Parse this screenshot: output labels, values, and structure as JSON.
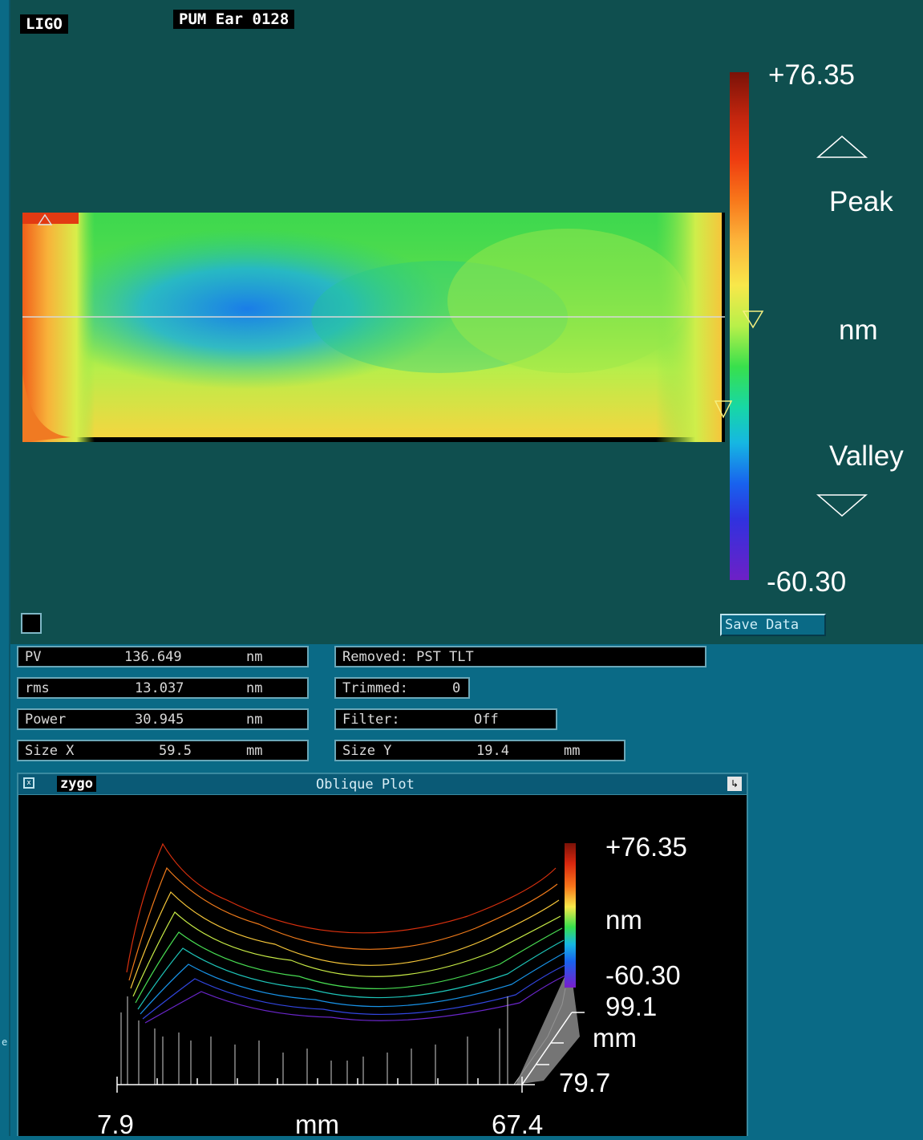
{
  "map": {
    "title_tag": "LIGO",
    "label_tag": "PUM Ear 0128",
    "scale_max": "+76.35",
    "scale_min": "-60.30",
    "peak_label": "Peak",
    "unit_label": "nm",
    "valley_label": "Valley",
    "save_label": "Save Data"
  },
  "results": {
    "pv": {
      "label": "PV",
      "value": "136.649",
      "unit": "nm"
    },
    "rms": {
      "label": "rms",
      "value": "13.037",
      "unit": "nm"
    },
    "power": {
      "label": "Power",
      "value": "30.945",
      "unit": "nm"
    },
    "size_x": {
      "label": "Size X",
      "value": "59.5",
      "unit": "mm"
    },
    "removed": "Removed: PST TLT",
    "trimmed": {
      "label": "Trimmed:",
      "value": "0"
    },
    "filter": {
      "label": "Filter:",
      "value": "Off"
    },
    "size_y": {
      "label": "Size Y",
      "value": "19.4",
      "unit": "mm"
    }
  },
  "oblique": {
    "logo": "zygo",
    "title": "Oblique Plot",
    "z_max": "+76.35",
    "z_unit": "nm",
    "z_min": "-60.30",
    "y_max": "99.1",
    "y_unit": "mm",
    "y_min": "79.7",
    "x_min": "7.9",
    "x_unit": "mm",
    "x_max": "67.4"
  },
  "colors": {
    "panel": "#0f4f4f",
    "desktop": "#0a6a86"
  }
}
